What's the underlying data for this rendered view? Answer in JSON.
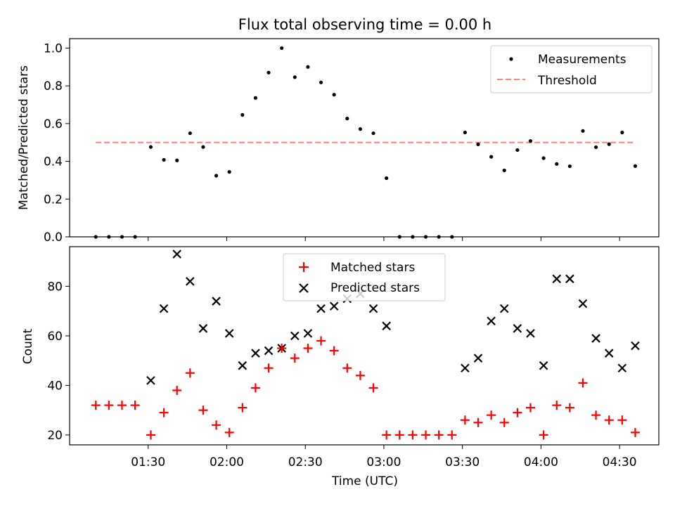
{
  "chart_data": [
    {
      "type": "scatter",
      "title": "Flux total observing time = 0.00 h",
      "ylabel": "Matched/Predicted stars",
      "xlabel": "",
      "xlim": [
        "01:00",
        "04:45"
      ],
      "ylim": [
        0,
        1.05
      ],
      "yticks": [
        0.0,
        0.2,
        0.4,
        0.6,
        0.8,
        1.0
      ],
      "ytick_labels": [
        "0.0",
        "0.2",
        "0.4",
        "0.6",
        "0.8",
        "1.0"
      ],
      "xticks": [
        "01:30",
        "02:00",
        "02:30",
        "03:00",
        "03:30",
        "04:00",
        "04:30"
      ],
      "legend": "top-right",
      "series": [
        {
          "name": "Measurements",
          "marker": "dot",
          "color": "#000000",
          "x": [
            "01:10",
            "01:15",
            "01:20",
            "01:25",
            "01:31",
            "01:36",
            "01:41",
            "01:46",
            "01:51",
            "01:56",
            "02:01",
            "02:06",
            "02:11",
            "02:16",
            "02:21",
            "02:26",
            "02:31",
            "02:36",
            "02:41",
            "02:46",
            "02:51",
            "02:56",
            "03:01",
            "03:06",
            "03:11",
            "03:16",
            "03:21",
            "03:26",
            "03:31",
            "03:36",
            "03:41",
            "03:46",
            "03:51",
            "03:56",
            "04:01",
            "04:06",
            "04:11",
            "04:16",
            "04:21",
            "04:26",
            "04:31",
            "04:36"
          ],
          "y": [
            0.0,
            0.0,
            0.0,
            0.0,
            0.476,
            0.408,
            0.405,
            0.549,
            0.476,
            0.324,
            0.344,
            0.646,
            0.736,
            0.87,
            1.0,
            0.846,
            0.9,
            0.818,
            0.753,
            0.627,
            0.571,
            0.549,
            0.311,
            0.0,
            0.0,
            0.0,
            0.0,
            0.0,
            0.553,
            0.49,
            0.424,
            0.352,
            0.46,
            0.508,
            0.417,
            0.386,
            0.374,
            0.561,
            0.475,
            0.491,
            0.553,
            0.375
          ]
        },
        {
          "name": "Threshold",
          "style": "dashed",
          "color": "#ff7f7f",
          "x": [
            "01:10",
            "04:36"
          ],
          "y": [
            0.5,
            0.5
          ]
        }
      ]
    },
    {
      "type": "scatter",
      "title": "",
      "ylabel": "Count",
      "xlabel": "Time (UTC)",
      "xlim": [
        "01:00",
        "04:45"
      ],
      "ylim": [
        16,
        96
      ],
      "yticks": [
        20,
        40,
        60,
        80
      ],
      "ytick_labels": [
        "20",
        "40",
        "60",
        "80"
      ],
      "xticks": [
        "01:30",
        "02:00",
        "02:30",
        "03:00",
        "03:30",
        "04:00",
        "04:30"
      ],
      "xtick_labels": [
        "01:30",
        "02:00",
        "02:30",
        "03:00",
        "03:30",
        "04:00",
        "04:30"
      ],
      "legend": "top-center",
      "series": [
        {
          "name": "Matched stars",
          "marker": "plus",
          "color": "#ff0000",
          "x": [
            "01:10",
            "01:15",
            "01:20",
            "01:25",
            "01:31",
            "01:36",
            "01:41",
            "01:46",
            "01:51",
            "01:56",
            "02:01",
            "02:06",
            "02:11",
            "02:16",
            "02:21",
            "02:26",
            "02:31",
            "02:36",
            "02:41",
            "02:46",
            "02:51",
            "02:56",
            "03:01",
            "03:06",
            "03:11",
            "03:16",
            "03:21",
            "03:26",
            "03:31",
            "03:36",
            "03:41",
            "03:46",
            "03:51",
            "03:56",
            "04:01",
            "04:06",
            "04:11",
            "04:16",
            "04:21",
            "04:26",
            "04:31",
            "04:36"
          ],
          "y": [
            32,
            32,
            32,
            32,
            20,
            29,
            38,
            45,
            30,
            24,
            21,
            31,
            39,
            47,
            55,
            51,
            55,
            58,
            54,
            47,
            44,
            39,
            20,
            20,
            20,
            20,
            20,
            20,
            26,
            25,
            28,
            25,
            29,
            31,
            20,
            32,
            31,
            41,
            28,
            26,
            26,
            21
          ]
        },
        {
          "name": "Predicted stars",
          "marker": "x",
          "color": "#000000",
          "x": [
            "01:31",
            "01:36",
            "01:41",
            "01:46",
            "01:51",
            "01:56",
            "02:01",
            "02:06",
            "02:11",
            "02:16",
            "02:21",
            "02:26",
            "02:31",
            "02:36",
            "02:41",
            "02:46",
            "02:51",
            "02:56",
            "03:01",
            "03:31",
            "03:36",
            "03:41",
            "03:46",
            "03:51",
            "03:56",
            "04:01",
            "04:06",
            "04:11",
            "04:16",
            "04:21",
            "04:26",
            "04:31",
            "04:36"
          ],
          "y": [
            42,
            71,
            93,
            82,
            63,
            74,
            61,
            48,
            53,
            54,
            55,
            60,
            61,
            71,
            72,
            75,
            77,
            71,
            64,
            47,
            51,
            66,
            71,
            63,
            61,
            48,
            83,
            83,
            73,
            59,
            53,
            47,
            56
          ]
        }
      ]
    }
  ]
}
